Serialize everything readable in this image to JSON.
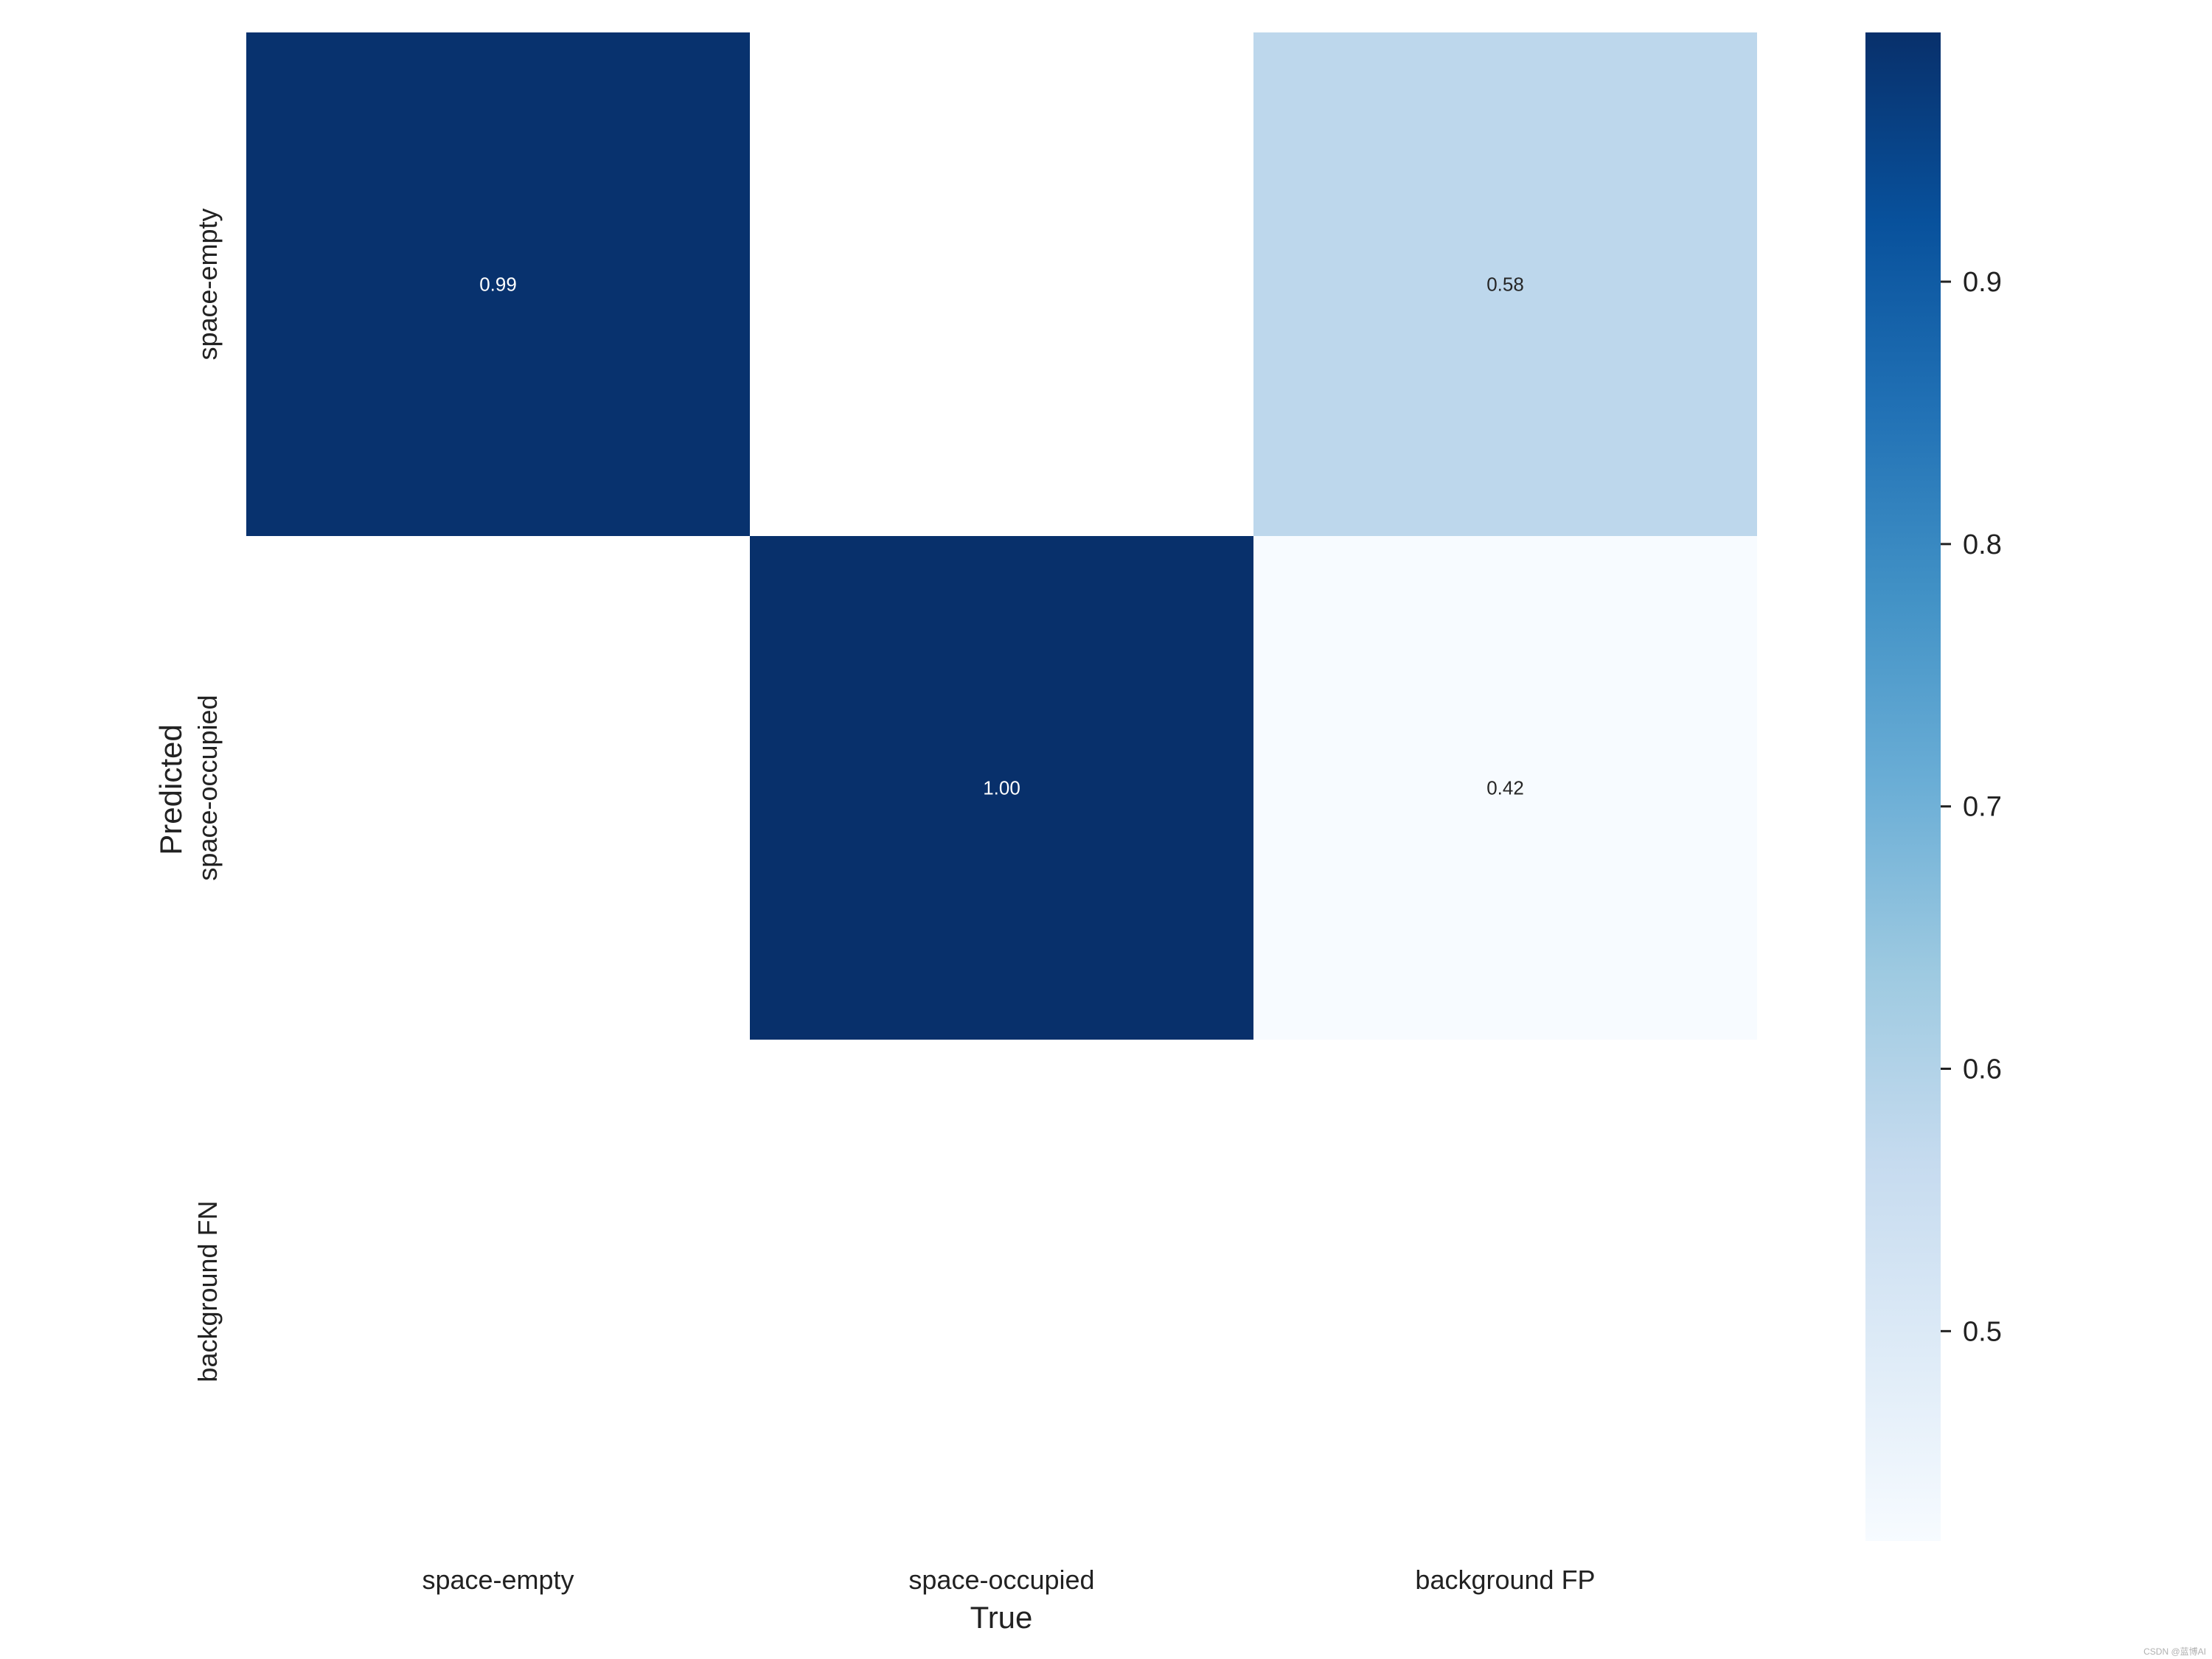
{
  "chart_data": {
    "type": "heatmap",
    "title": "",
    "xlabel": "True",
    "ylabel": "Predicted",
    "x_categories": [
      "space-empty",
      "space-occupied",
      "background FP"
    ],
    "y_categories": [
      "space-empty",
      "space-occupied",
      "background FN"
    ],
    "values": [
      [
        0.99,
        null,
        0.58
      ],
      [
        null,
        1.0,
        0.42
      ],
      [
        null,
        null,
        null
      ]
    ],
    "cell_labels": [
      [
        "0.99",
        "",
        "0.58"
      ],
      [
        "",
        "1.00",
        "0.42"
      ],
      [
        "",
        "",
        ""
      ]
    ],
    "colormap": "Blues",
    "colorbar": {
      "range": [
        0.42,
        0.995
      ],
      "ticks": [
        0.5,
        0.6,
        0.7,
        0.8,
        0.9
      ],
      "tick_labels": [
        "0.5",
        "0.6",
        "0.7",
        "0.8",
        "0.9"
      ]
    },
    "grid": false,
    "legend": "colorbar-right"
  },
  "watermark": "CSDN @蓝博AI"
}
